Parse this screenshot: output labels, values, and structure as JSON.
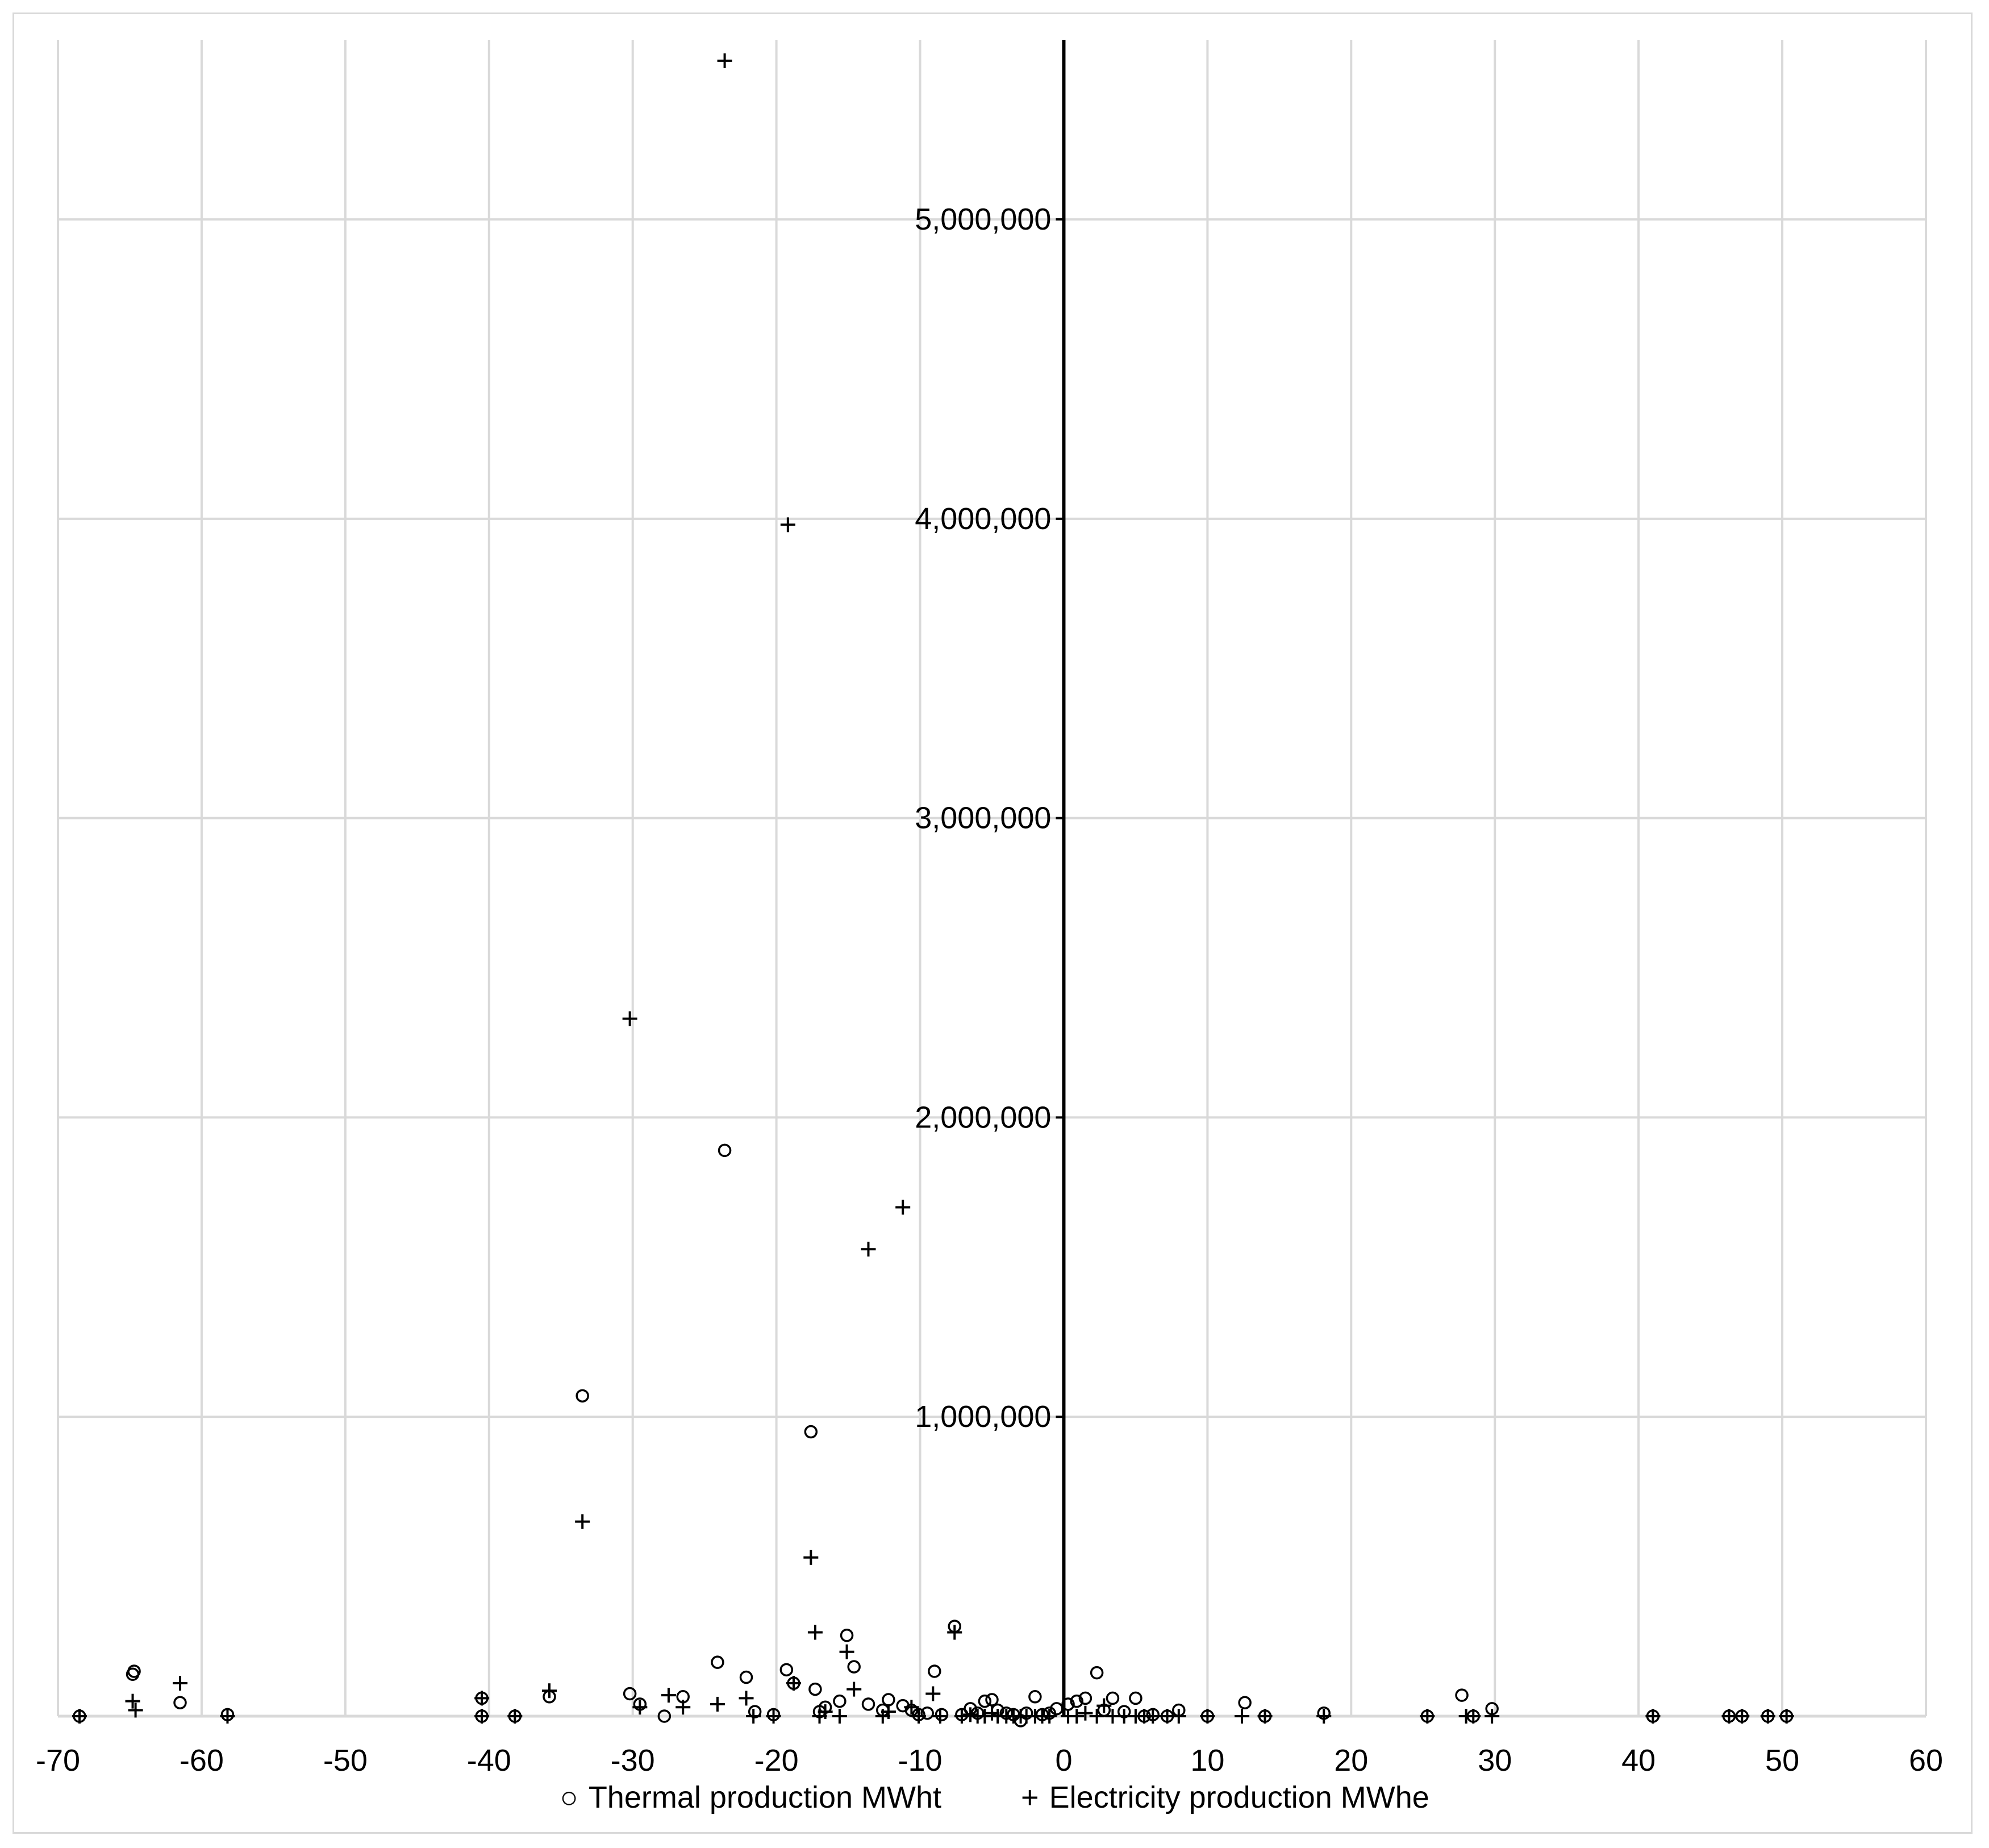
{
  "chart_data": {
    "type": "scatter",
    "title": "",
    "xlabel": "",
    "ylabel": "",
    "xlim": [
      -70,
      60
    ],
    "ylim": [
      0,
      5600000
    ],
    "x_ticks": [
      -70,
      -60,
      -50,
      -40,
      -30,
      -20,
      -10,
      0,
      10,
      20,
      30,
      40,
      50,
      60
    ],
    "x_tick_labels": [
      "-70",
      "-60",
      "-50",
      "-40",
      "-30",
      "-20",
      "-10",
      "0",
      "10",
      "20",
      "30",
      "40",
      "50",
      "60"
    ],
    "y_ticks": [
      1000000,
      2000000,
      3000000,
      4000000,
      5000000
    ],
    "y_tick_labels": [
      "1,000,000",
      "2,000,000",
      "3,000,000",
      "4,000,000",
      "5,000,000"
    ],
    "grid": true,
    "legend_position": "bottom",
    "colors": {
      "gridline": "#d9d9d9",
      "axis": "#000000",
      "marker": "#000000"
    },
    "series": [
      {
        "name": "Thermal production MWht",
        "marker": "circle",
        "points": [
          [
            -68.5,
            0
          ],
          [
            -64.8,
            140000
          ],
          [
            -64.7,
            150000
          ],
          [
            -61.5,
            45000
          ],
          [
            -58.2,
            5000
          ],
          [
            -40.5,
            60000
          ],
          [
            -40.5,
            0
          ],
          [
            -38.2,
            0
          ],
          [
            -35.8,
            65000
          ],
          [
            -33.5,
            1070000
          ],
          [
            -30.2,
            75000
          ],
          [
            -29.5,
            40000
          ],
          [
            -27.8,
            0
          ],
          [
            -26.5,
            65000
          ],
          [
            -24.1,
            180000
          ],
          [
            -23.6,
            1890000
          ],
          [
            -22.1,
            130000
          ],
          [
            -21.5,
            15000
          ],
          [
            -20.2,
            5000
          ],
          [
            -19.3,
            155000
          ],
          [
            -18.8,
            110000
          ],
          [
            -17.6,
            950000
          ],
          [
            -17.3,
            90000
          ],
          [
            -17.0,
            15000
          ],
          [
            -16.6,
            30000
          ],
          [
            -15.6,
            50000
          ],
          [
            -15.1,
            270000
          ],
          [
            -14.6,
            165000
          ],
          [
            -13.6,
            40000
          ],
          [
            -12.6,
            20000
          ],
          [
            -12.2,
            55000
          ],
          [
            -11.2,
            35000
          ],
          [
            -10.6,
            20000
          ],
          [
            -10.1,
            5000
          ],
          [
            -9.5,
            10000
          ],
          [
            -9.0,
            150000
          ],
          [
            -8.5,
            5000
          ],
          [
            -7.6,
            300000
          ],
          [
            -7.1,
            5000
          ],
          [
            -6.5,
            25000
          ],
          [
            -6.0,
            10000
          ],
          [
            -5.5,
            50000
          ],
          [
            -5.0,
            55000
          ],
          [
            -4.6,
            20000
          ],
          [
            -4.0,
            10000
          ],
          [
            -3.5,
            5000
          ],
          [
            -3.0,
            -15000
          ],
          [
            -2.6,
            10000
          ],
          [
            -2.0,
            65000
          ],
          [
            -1.5,
            5000
          ],
          [
            -1.0,
            10000
          ],
          [
            -0.5,
            25000
          ],
          [
            0.3,
            40000
          ],
          [
            0.9,
            50000
          ],
          [
            1.5,
            60000
          ],
          [
            2.3,
            145000
          ],
          [
            2.8,
            20000
          ],
          [
            3.4,
            60000
          ],
          [
            4.2,
            15000
          ],
          [
            5.0,
            60000
          ],
          [
            5.6,
            0
          ],
          [
            6.2,
            5000
          ],
          [
            7.2,
            0
          ],
          [
            8.0,
            20000
          ],
          [
            10.0,
            0
          ],
          [
            12.6,
            45000
          ],
          [
            14.0,
            0
          ],
          [
            18.1,
            10000
          ],
          [
            25.3,
            0
          ],
          [
            27.7,
            70000
          ],
          [
            28.5,
            0
          ],
          [
            29.8,
            25000
          ],
          [
            41.0,
            0
          ],
          [
            46.3,
            0
          ],
          [
            47.2,
            0
          ],
          [
            49.0,
            0
          ],
          [
            50.3,
            0
          ]
        ]
      },
      {
        "name": "Electricity production MWhe",
        "marker": "plus",
        "points": [
          [
            -68.5,
            0
          ],
          [
            -64.8,
            50000
          ],
          [
            -64.6,
            20000
          ],
          [
            -61.5,
            110000
          ],
          [
            -58.2,
            0
          ],
          [
            -40.5,
            60000
          ],
          [
            -40.5,
            0
          ],
          [
            -38.2,
            0
          ],
          [
            -35.8,
            85000
          ],
          [
            -33.5,
            650000
          ],
          [
            -30.2,
            2330000
          ],
          [
            -29.5,
            30000
          ],
          [
            -27.5,
            70000
          ],
          [
            -26.5,
            30000
          ],
          [
            -24.1,
            40000
          ],
          [
            -23.6,
            5530000
          ],
          [
            -22.1,
            60000
          ],
          [
            -21.6,
            0
          ],
          [
            -20.2,
            0
          ],
          [
            -19.2,
            3980000
          ],
          [
            -18.8,
            110000
          ],
          [
            -17.6,
            530000
          ],
          [
            -17.3,
            280000
          ],
          [
            -17.0,
            0
          ],
          [
            -16.6,
            15000
          ],
          [
            -15.6,
            0
          ],
          [
            -15.1,
            215000
          ],
          [
            -14.6,
            90000
          ],
          [
            -13.6,
            1560000
          ],
          [
            -12.6,
            0
          ],
          [
            -12.2,
            15000
          ],
          [
            -11.2,
            1700000
          ],
          [
            -10.6,
            30000
          ],
          [
            -10.1,
            0
          ],
          [
            -9.1,
            75000
          ],
          [
            -8.6,
            0
          ],
          [
            -7.6,
            280000
          ],
          [
            -7.1,
            0
          ],
          [
            -6.5,
            5000
          ],
          [
            -6.0,
            0
          ],
          [
            -5.5,
            0
          ],
          [
            -5.0,
            10000
          ],
          [
            -4.6,
            0
          ],
          [
            -4.0,
            0
          ],
          [
            -3.5,
            0
          ],
          [
            -3.0,
            0
          ],
          [
            -2.6,
            0
          ],
          [
            -2.0,
            0
          ],
          [
            -1.5,
            0
          ],
          [
            -1.0,
            0
          ],
          [
            0.3,
            0
          ],
          [
            0.9,
            0
          ],
          [
            1.5,
            10000
          ],
          [
            2.3,
            0
          ],
          [
            2.8,
            35000
          ],
          [
            3.4,
            0
          ],
          [
            4.2,
            0
          ],
          [
            5.0,
            0
          ],
          [
            5.6,
            0
          ],
          [
            6.2,
            0
          ],
          [
            7.2,
            0
          ],
          [
            8.0,
            0
          ],
          [
            10.0,
            0
          ],
          [
            12.4,
            0
          ],
          [
            14.0,
            0
          ],
          [
            18.1,
            0
          ],
          [
            25.3,
            0
          ],
          [
            28.0,
            0
          ],
          [
            28.5,
            0
          ],
          [
            29.8,
            0
          ],
          [
            41.0,
            0
          ],
          [
            46.3,
            0
          ],
          [
            47.2,
            0
          ],
          [
            49.0,
            0
          ],
          [
            50.3,
            0
          ]
        ]
      }
    ]
  }
}
